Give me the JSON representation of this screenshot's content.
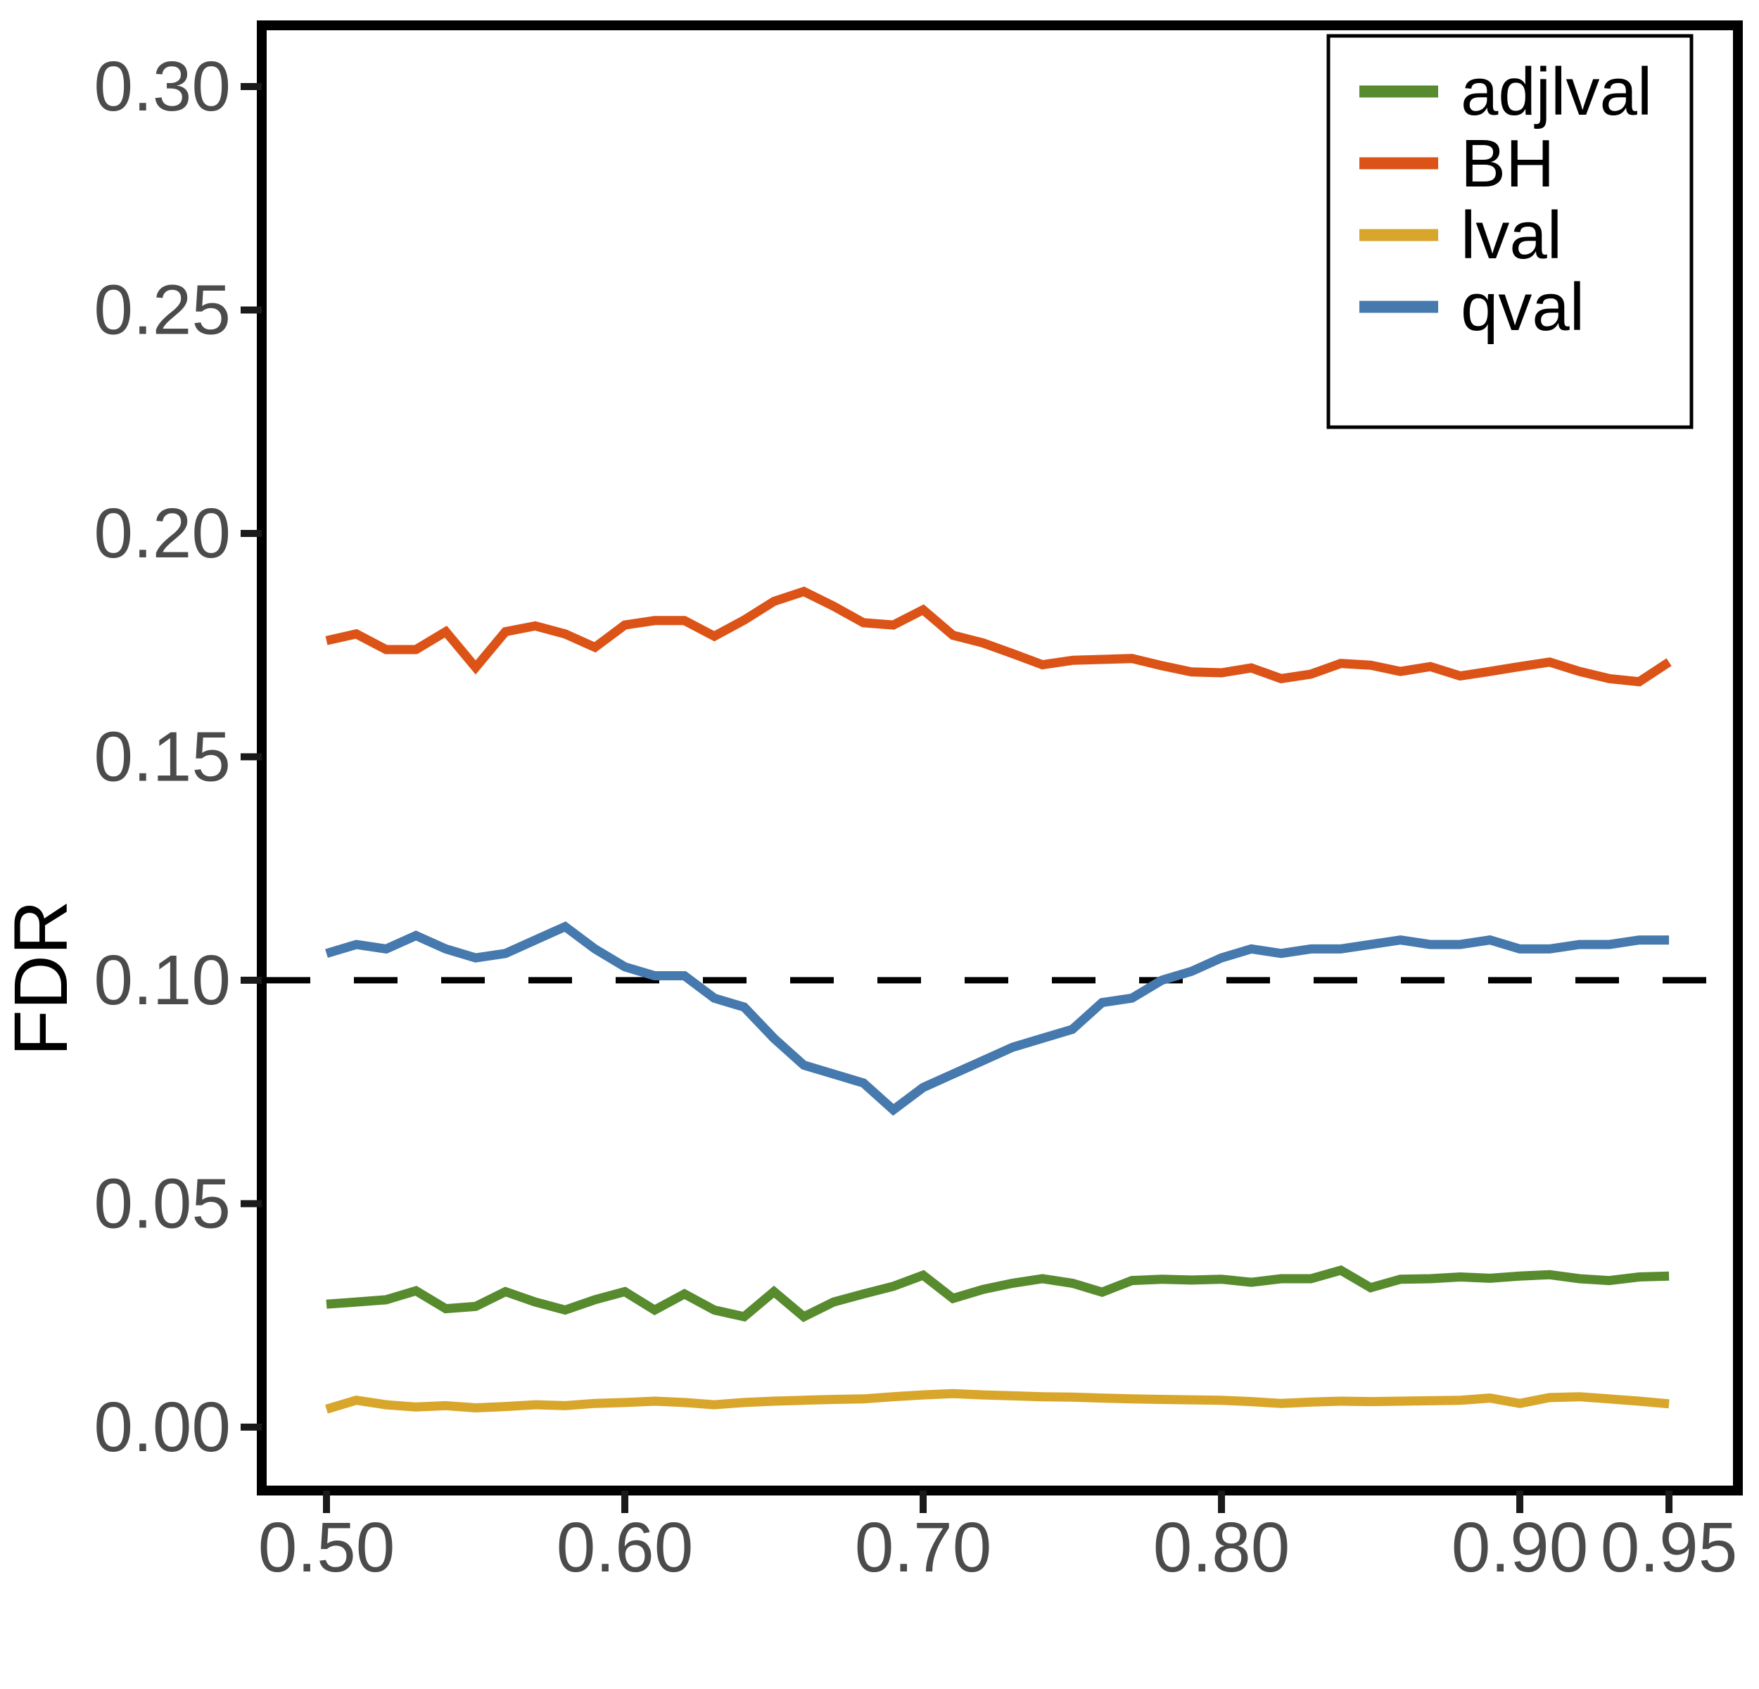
{
  "chart_data": {
    "type": "line",
    "title": "",
    "xlabel": "",
    "ylabel": "FDR",
    "x": [
      0.5,
      0.51,
      0.52,
      0.53,
      0.54,
      0.55,
      0.56,
      0.57,
      0.58,
      0.59,
      0.6,
      0.61,
      0.62,
      0.63,
      0.64,
      0.65,
      0.66,
      0.67,
      0.68,
      0.69,
      0.7,
      0.71,
      0.72,
      0.73,
      0.74,
      0.75,
      0.76,
      0.77,
      0.78,
      0.79,
      0.8,
      0.81,
      0.82,
      0.83,
      0.84,
      0.85,
      0.86,
      0.87,
      0.88,
      0.89,
      0.9,
      0.91,
      0.92,
      0.93,
      0.94,
      0.95
    ],
    "series": [
      {
        "name": "adjlval",
        "color": "#578b2e",
        "values": [
          0.0275,
          0.028,
          0.0285,
          0.0305,
          0.0265,
          0.027,
          0.0303,
          0.028,
          0.0262,
          0.0285,
          0.0303,
          0.0262,
          0.0298,
          0.0262,
          0.0247,
          0.0303,
          0.0247,
          0.028,
          0.0298,
          0.0315,
          0.034,
          0.0288,
          0.0308,
          0.0322,
          0.0332,
          0.0322,
          0.0302,
          0.0328,
          0.0331,
          0.0329,
          0.0331,
          0.0324,
          0.0332,
          0.0332,
          0.0351,
          0.0312,
          0.0331,
          0.0332,
          0.0336,
          0.0333,
          0.0338,
          0.0341,
          0.0332,
          0.0328,
          0.0336,
          0.0338
        ]
      },
      {
        "name": "BH",
        "color": "#dc5317",
        "values": [
          0.176,
          0.1775,
          0.174,
          0.174,
          0.178,
          0.17,
          0.178,
          0.1793,
          0.1775,
          0.1745,
          0.1795,
          0.1805,
          0.1805,
          0.177,
          0.1806,
          0.1848,
          0.187,
          0.1837,
          0.18,
          0.1795,
          0.1829,
          0.1772,
          0.1755,
          0.1731,
          0.1706,
          0.1716,
          0.1718,
          0.172,
          0.1704,
          0.169,
          0.1688,
          0.1699,
          0.1675,
          0.1685,
          0.1709,
          0.1705,
          0.1691,
          0.1702,
          0.1681,
          0.1691,
          0.1702,
          0.1712,
          0.1691,
          0.1675,
          0.1668,
          0.1712
        ]
      },
      {
        "name": "lval",
        "color": "#d8a62a",
        "values": [
          0.004,
          0.006,
          0.005,
          0.0045,
          0.0048,
          0.0043,
          0.0046,
          0.005,
          0.0048,
          0.0053,
          0.0055,
          0.0058,
          0.0055,
          0.005,
          0.0055,
          0.0058,
          0.006,
          0.0062,
          0.0063,
          0.0068,
          0.0072,
          0.0075,
          0.0072,
          0.007,
          0.0068,
          0.0067,
          0.0065,
          0.0063,
          0.0062,
          0.0061,
          0.006,
          0.0057,
          0.0053,
          0.0056,
          0.0058,
          0.0057,
          0.0058,
          0.0059,
          0.006,
          0.0065,
          0.0053,
          0.0066,
          0.0068,
          0.0063,
          0.0058,
          0.0052
        ]
      },
      {
        "name": "qval",
        "color": "#4679ad",
        "values": [
          0.106,
          0.108,
          0.107,
          0.11,
          0.107,
          0.105,
          0.106,
          0.109,
          0.112,
          0.107,
          0.103,
          0.101,
          0.101,
          0.096,
          0.094,
          0.087,
          0.081,
          0.079,
          0.077,
          0.071,
          0.076,
          0.079,
          0.082,
          0.085,
          0.087,
          0.089,
          0.095,
          0.096,
          0.1,
          0.102,
          0.105,
          0.107,
          0.106,
          0.107,
          0.107,
          0.108,
          0.109,
          0.108,
          0.108,
          0.109,
          0.107,
          0.107,
          0.108,
          0.108,
          0.109,
          0.109
        ]
      }
    ],
    "reference_line": {
      "y": 0.1,
      "style": "dashed",
      "color": "#000000"
    },
    "x_ticks": [
      0.5,
      0.6,
      0.7,
      0.8,
      0.9,
      0.95
    ],
    "x_tick_labels": [
      "0.50",
      "0.60",
      "0.70",
      "0.80",
      "0.90",
      "0.95"
    ],
    "y_ticks": [
      0.0,
      0.05,
      0.1,
      0.15,
      0.2,
      0.25,
      0.3
    ],
    "y_tick_labels": [
      "0.00",
      "0.05",
      "0.10",
      "0.15",
      "0.20",
      "0.25",
      "0.30"
    ],
    "xlim": [
      0.4783,
      0.9731
    ],
    "ylim": [
      -0.0142,
      0.3137
    ],
    "grid": false,
    "legend_position": "upper right",
    "legend_labels": [
      "adjlval",
      "BH",
      "lval",
      "qval"
    ],
    "tick_label_color": "#4b4b4b",
    "axis_color": "#000000"
  }
}
